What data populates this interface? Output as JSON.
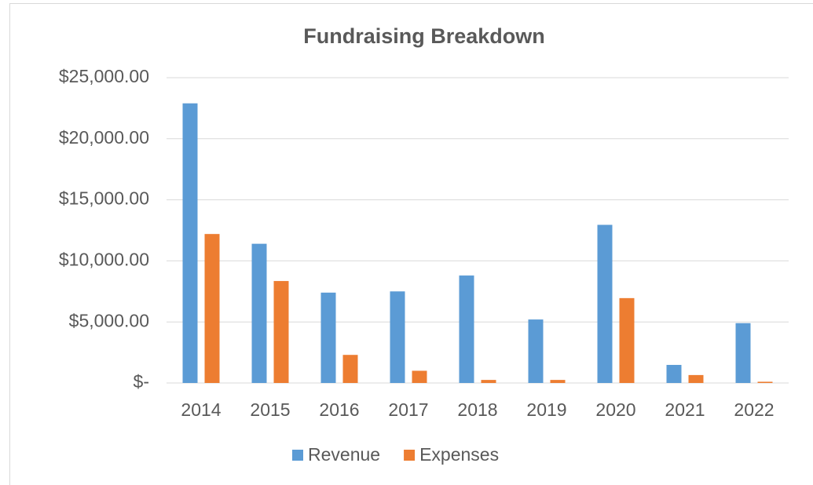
{
  "chart_data": {
    "type": "bar",
    "title": "Fundraising Breakdown",
    "categories": [
      "2014",
      "2015",
      "2016",
      "2017",
      "2018",
      "2019",
      "2020",
      "2021",
      "2022"
    ],
    "series": [
      {
        "name": "Revenue",
        "color": "#5b9bd5",
        "values": [
          22900,
          11400,
          7400,
          7500,
          8800,
          5200,
          12950,
          1480,
          4900
        ]
      },
      {
        "name": "Expenses",
        "color": "#ed7d31",
        "values": [
          12200,
          8350,
          2300,
          1000,
          250,
          250,
          6950,
          650,
          100
        ]
      }
    ],
    "ylim": [
      0,
      25000
    ],
    "yticks": [
      {
        "value": 0,
        "label": "$-"
      },
      {
        "value": 5000,
        "label": "$5,000.00"
      },
      {
        "value": 10000,
        "label": "$10,000.00"
      },
      {
        "value": 15000,
        "label": "$15,000.00"
      },
      {
        "value": 20000,
        "label": "$20,000.00"
      },
      {
        "value": 25000,
        "label": "$25,000.00"
      }
    ],
    "grid": true,
    "legend": "bottom"
  }
}
